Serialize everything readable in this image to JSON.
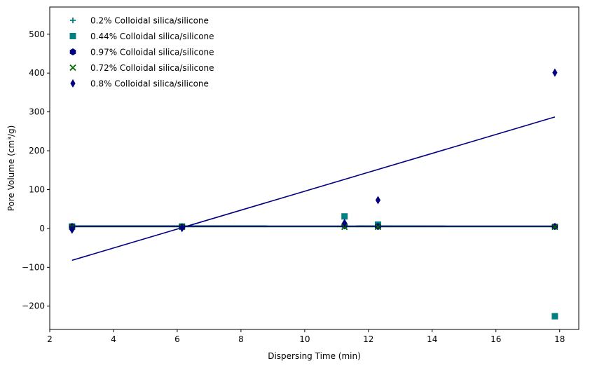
{
  "chart_data": {
    "type": "scatter",
    "title": "",
    "xlabel": "Dispersing Time (min)",
    "ylabel": "Pore Volume (cm³/g)",
    "xlim": [
      2.0,
      18.6
    ],
    "ylim": [
      -260,
      570
    ],
    "xticks": [
      2,
      4,
      6,
      8,
      10,
      12,
      14,
      16,
      18
    ],
    "yticks": [
      -200,
      -100,
      0,
      100,
      200,
      300,
      400,
      500
    ],
    "xtick_labels": [
      "2",
      "4",
      "6",
      "8",
      "10",
      "12",
      "14",
      "16",
      "18"
    ],
    "ytick_labels": [
      "−200",
      "−100",
      "0",
      "100",
      "200",
      "300",
      "400",
      "500"
    ],
    "grid": false,
    "legend_position": "top-left",
    "series": [
      {
        "name": "0.2% Colloidal silica/silicone",
        "marker": "plus",
        "color": "#008080",
        "points": [
          {
            "x": 2.7,
            "y": 5
          },
          {
            "x": 6.15,
            "y": 5
          },
          {
            "x": 11.25,
            "y": 5
          },
          {
            "x": 12.3,
            "y": 5
          },
          {
            "x": 17.85,
            "y": 5
          }
        ]
      },
      {
        "name": "0.44% Colloidal silica/silicone",
        "marker": "square",
        "color": "#008080",
        "points": [
          {
            "x": 2.7,
            "y": 5
          },
          {
            "x": 6.15,
            "y": 5
          },
          {
            "x": 11.25,
            "y": 31
          },
          {
            "x": 12.3,
            "y": 10
          },
          {
            "x": 17.85,
            "y": -226
          }
        ]
      },
      {
        "name": "0.97% Colloidal silica/silicone",
        "marker": "hexagon",
        "color": "#000080",
        "points": [
          {
            "x": 2.7,
            "y": 5
          },
          {
            "x": 6.15,
            "y": 4
          },
          {
            "x": 11.25,
            "y": 8
          },
          {
            "x": 12.3,
            "y": 5
          },
          {
            "x": 17.85,
            "y": 5
          }
        ]
      },
      {
        "name": "0.72% Colloidal silica/silicone",
        "marker": "x",
        "color": "#006400",
        "points": [
          {
            "x": 2.7,
            "y": 4
          },
          {
            "x": 6.15,
            "y": 4
          },
          {
            "x": 11.25,
            "y": 4
          },
          {
            "x": 12.3,
            "y": 4
          },
          {
            "x": 17.85,
            "y": 4
          }
        ]
      },
      {
        "name": "0.8% Colloidal silica/silicone",
        "marker": "thin_diamond",
        "color": "#000080",
        "points": [
          {
            "x": 2.7,
            "y": -3
          },
          {
            "x": 6.15,
            "y": 1
          },
          {
            "x": 11.25,
            "y": 14
          },
          {
            "x": 12.3,
            "y": 73
          },
          {
            "x": 17.85,
            "y": 401
          }
        ]
      }
    ],
    "trendlines": [
      {
        "color": "#008080",
        "points": [
          [
            2.7,
            6.5
          ],
          [
            17.85,
            6.0
          ]
        ]
      },
      {
        "color": "#000080",
        "points": [
          [
            2.7,
            5.5
          ],
          [
            17.85,
            5.5
          ]
        ]
      },
      {
        "color": "#006400",
        "points": [
          [
            2.7,
            4.5
          ],
          [
            17.85,
            4.5
          ]
        ]
      },
      {
        "color": "#000080",
        "points": [
          [
            2.7,
            6.0
          ],
          [
            17.85,
            6.0
          ]
        ]
      },
      {
        "color": "#000080",
        "points": [
          [
            2.7,
            -82
          ],
          [
            17.85,
            287
          ]
        ]
      }
    ]
  }
}
